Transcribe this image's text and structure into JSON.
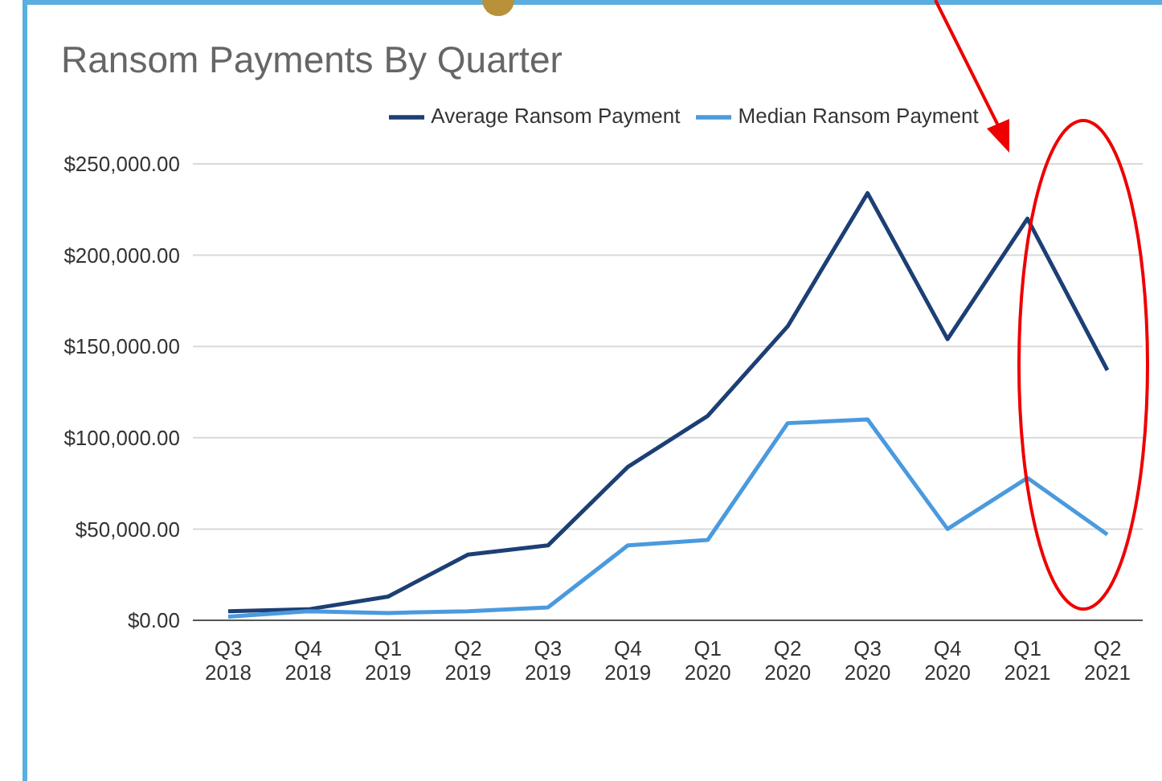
{
  "chart_data": {
    "type": "line",
    "title": "Ransom Payments By Quarter",
    "categories": [
      "Q3 2018",
      "Q4 2018",
      "Q1 2019",
      "Q2 2019",
      "Q3 2019",
      "Q4 2019",
      "Q1 2020",
      "Q2 2020",
      "Q3 2020",
      "Q4 2020",
      "Q1 2021",
      "Q2 2021"
    ],
    "series": [
      {
        "name": "Average Ransom Payment",
        "color": "#1c3f75",
        "values": [
          5000,
          6000,
          13000,
          36000,
          41000,
          84000,
          112000,
          161000,
          234000,
          154000,
          220000,
          137000
        ]
      },
      {
        "name": "Median Ransom Payment",
        "color": "#4a9ade",
        "values": [
          2000,
          5000,
          4000,
          5000,
          7000,
          41000,
          44000,
          108000,
          110000,
          50000,
          78000,
          47000
        ]
      }
    ],
    "ylim": [
      0,
      250000
    ],
    "yticks": [
      {
        "value": 0,
        "label": "$0.00"
      },
      {
        "value": 50000,
        "label": "$50,000.00"
      },
      {
        "value": 100000,
        "label": "$100,000.00"
      },
      {
        "value": 150000,
        "label": "$150,000.00"
      },
      {
        "value": 200000,
        "label": "$200,000.00"
      },
      {
        "value": 250000,
        "label": "$250,000.00"
      }
    ],
    "grid": "y",
    "legend": "top",
    "marker": "none",
    "line_style": "solid"
  }
}
